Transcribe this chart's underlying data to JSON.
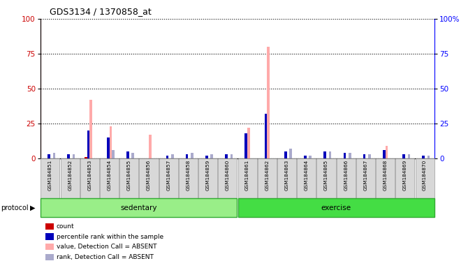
{
  "title": "GDS3134 / 1370858_at",
  "samples": [
    "GSM184851",
    "GSM184852",
    "GSM184853",
    "GSM184854",
    "GSM184855",
    "GSM184856",
    "GSM184857",
    "GSM184858",
    "GSM184859",
    "GSM184860",
    "GSM184861",
    "GSM184862",
    "GSM184863",
    "GSM184864",
    "GSM184865",
    "GSM184866",
    "GSM184867",
    "GSM184868",
    "GSM184869",
    "GSM184870"
  ],
  "count": [
    0,
    0,
    1,
    0,
    0,
    0,
    0,
    0,
    0,
    0,
    0,
    0,
    0,
    0,
    0,
    0,
    0,
    0,
    0,
    0
  ],
  "percentile_rank": [
    3,
    3,
    20,
    15,
    5,
    0,
    2,
    3,
    2,
    3,
    18,
    32,
    5,
    2,
    5,
    4,
    3,
    6,
    3,
    2
  ],
  "value_absent": [
    0,
    0,
    42,
    23,
    0,
    17,
    0,
    0,
    0,
    0,
    22,
    80,
    0,
    0,
    0,
    0,
    0,
    9,
    0,
    0
  ],
  "rank_absent": [
    4,
    3,
    0,
    6,
    4,
    0,
    3,
    4,
    3,
    3,
    0,
    0,
    7,
    2,
    5,
    4,
    3,
    0,
    3,
    2
  ],
  "sedentary_range": [
    0,
    9
  ],
  "exercise_range": [
    10,
    19
  ],
  "ylim": [
    0,
    100
  ],
  "yticks": [
    0,
    25,
    50,
    75,
    100
  ],
  "color_count": "#cc0000",
  "color_rank": "#0000bb",
  "color_value_absent": "#ffaaaa",
  "color_rank_absent": "#aaaacc",
  "color_sedentary": "#99ee88",
  "color_exercise": "#44dd44",
  "bar_width": 0.13
}
